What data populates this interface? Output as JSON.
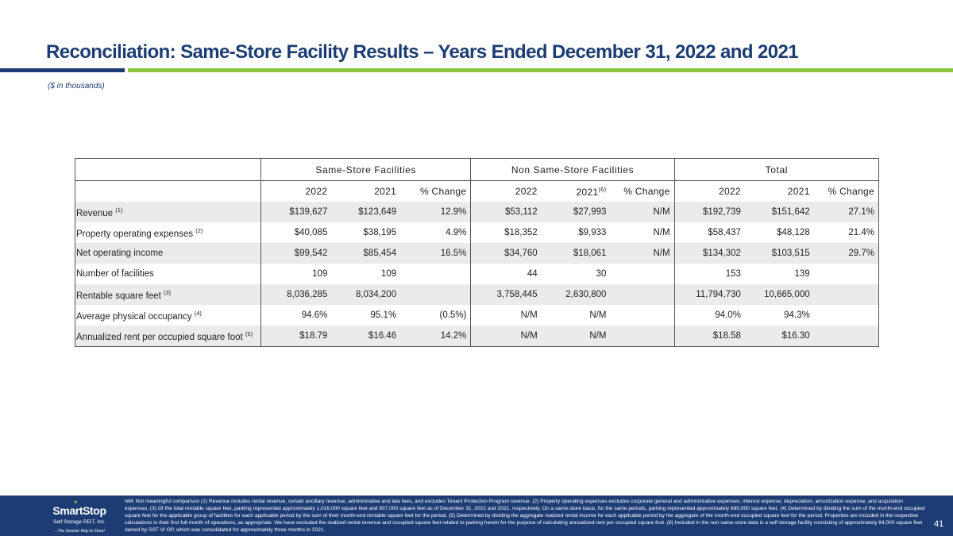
{
  "header": {
    "title": "Reconciliation: Same-Store Facility Results – Years Ended December 31, 2022 and 2021",
    "subtitle": "($ in thousands)"
  },
  "table": {
    "groups": [
      "Same-Store Facilities",
      "Non Same-Store Facilities",
      "Total"
    ],
    "columns": {
      "same_2022": "2022",
      "same_2021": "2021",
      "same_change": "% Change",
      "non_2022": "2022",
      "non_2021": "2021",
      "non_2021_note": "(6)",
      "non_change": "% Change",
      "total_2022": "2022",
      "total_2021": "2021",
      "total_change": "% Change"
    },
    "rows": [
      {
        "label": "Revenue",
        "note": "(1)",
        "values": [
          "$139,627",
          "$123,649",
          "12.9%",
          "$53,112",
          "$27,993",
          "N/M",
          "$192,739",
          "$151,642",
          "27.1%"
        ]
      },
      {
        "label": "Property operating expenses",
        "note": "(2)",
        "values": [
          "$40,085",
          "$38,195",
          "4.9%",
          "$18,352",
          "$9,933",
          "N/M",
          "$58,437",
          "$48,128",
          "21.4%"
        ]
      },
      {
        "label": "Net operating income",
        "note": "",
        "values": [
          "$99,542",
          "$85,454",
          "16.5%",
          "$34,760",
          "$18,061",
          "N/M",
          "$134,302",
          "$103,515",
          "29.7%"
        ]
      },
      {
        "label": "Number of facilities",
        "note": "",
        "values": [
          "109",
          "109",
          "",
          "44",
          "30",
          "",
          "153",
          "139",
          ""
        ]
      },
      {
        "label": "Rentable square feet",
        "note": "(3)",
        "values": [
          "8,036,285",
          "8,034,200",
          "",
          "3,758,445",
          "2,630,800",
          "",
          "11,794,730",
          "10,665,000",
          ""
        ]
      },
      {
        "label": "Average physical occupancy",
        "note": "(4)",
        "values": [
          "94.6%",
          "95.1%",
          "(0.5%)",
          "N/M",
          "N/M",
          "",
          "94.0%",
          "94.3%",
          ""
        ]
      },
      {
        "label": "Annualized rent per occupied square foot",
        "note": "(5)",
        "values": [
          "$18.79",
          "$16.46",
          "14.2%",
          "N/M",
          "N/M",
          "",
          "$18.58",
          "$16.30",
          ""
        ]
      }
    ]
  },
  "footer": {
    "logo_name": "SmartStop",
    "logo_sub": "Self Storage REIT, Inc.",
    "logo_tag": "...The Smarter Way to Store!",
    "notes": "NM: Not meaningful comparison (1) Revenue includes rental revenue, certain ancillary revenue, administrative and late fees, and excludes Tenant Protection Program revenue. (2) Property operating expenses excludes corporate general and administrative expenses, interest expense, depreciation, amortization expense, and acquisition expenses. (3) Of the total rentable square feet, parking represented approximately 1,016,000 square feet and 937,000 square feet as of December 31, 2022 and 2021, respectively. On a same-store basis, for the same periods, parking represented approximately 680,000 square feet. (4) Determined by dividing the sum of the month-end occupied square feet for the applicable group of facilities for each applicable period by the sum of their month-end rentable square feet for the period. (5) Determined by dividing the aggregate realized rental income for each applicable period by the aggregate of the month-end occupied square feet for the period. Properties are included in the respective calculations in their first full month of operations, as appropriate. We have excluded the realized rental revenue and occupied square feet related to parking herein for the purpose of calculating annualized rent per occupied square foot. (6) Included in the non same-store data is a self storage facility consisting of approximately 84,000 square feet owned by SST VI OP, which was consolidated for approximately three months in 2021.",
    "page_number": "41"
  },
  "colors": {
    "navy": "#1c3c73",
    "green": "#8cc63f",
    "row_shade": "#ebebeb"
  }
}
